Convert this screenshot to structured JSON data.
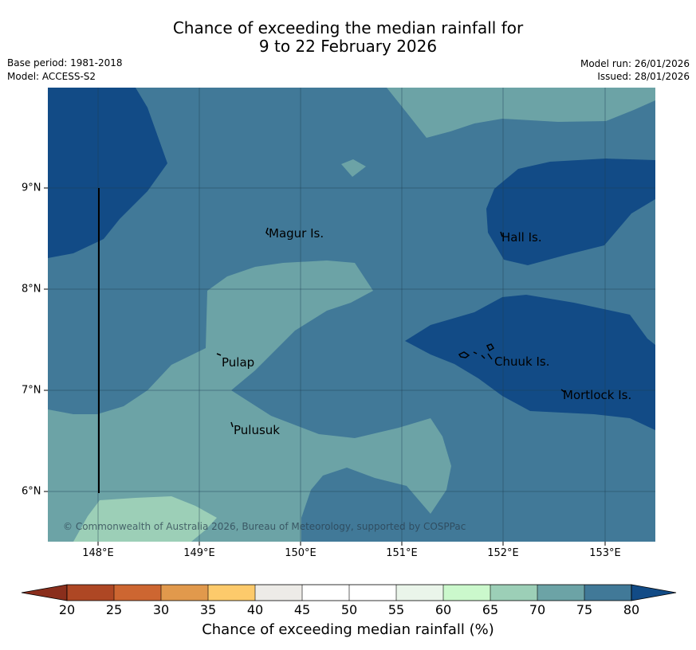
{
  "title": {
    "line1": "Chance of exceeding the median rainfall for",
    "line2": "9 to 22 February 2026"
  },
  "meta": {
    "base_period": "Base period: 1981-2018",
    "model": "Model: ACCESS-S2",
    "model_run": "Model run: 26/01/2026",
    "issued": "Issued: 28/01/2026"
  },
  "map": {
    "lon_labels": [
      "148°E",
      "149°E",
      "150°E",
      "151°E",
      "152°E",
      "153°E"
    ],
    "lat_labels": [
      "9°N",
      "8°N",
      "7°N",
      "6°N"
    ],
    "places": [
      "Magur Is.",
      "Hall Is.",
      "Pulap",
      "Chuuk Is.",
      "Mortlock Is.",
      "Pulusuk"
    ],
    "copyright": "© Commonwealth of Australia 2026, Bureau of Meteorology, supported by COSPPac",
    "colors": {
      "band_65_70": "#9ccfb7",
      "band_70_75": "#6ca3a6",
      "band_75_80": "#417998",
      "band_80_plus": "#124b86"
    }
  },
  "colorbar": {
    "labels": [
      "20",
      "25",
      "30",
      "35",
      "40",
      "45",
      "50",
      "55",
      "60",
      "65",
      "70",
      "75",
      "80"
    ],
    "colors": [
      "#ae4724",
      "#cd6631",
      "#e1994c",
      "#fdca6b",
      "#edebe7",
      "#ffffff",
      "#ffffff",
      "#eaf5ea",
      "#cbf8cc",
      "#9ccfb7",
      "#6ca3a6",
      "#417998"
    ],
    "low_color": "#8a2e1c",
    "high_color": "#124b86",
    "title": "Chance of exceeding median rainfall (%)"
  }
}
